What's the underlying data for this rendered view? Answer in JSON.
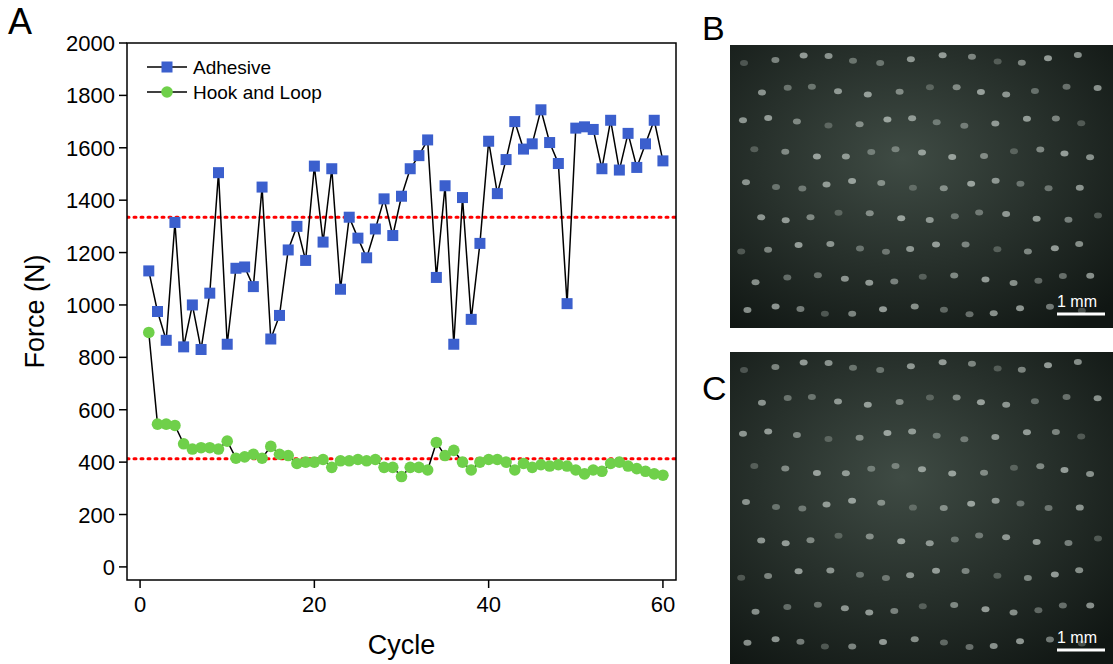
{
  "chart_data": {
    "type": "line",
    "x_label": "Cycle",
    "y_label": "Force (N)",
    "x": [
      1,
      2,
      3,
      4,
      5,
      6,
      7,
      8,
      9,
      10,
      11,
      12,
      13,
      14,
      15,
      16,
      17,
      18,
      19,
      20,
      21,
      22,
      23,
      24,
      25,
      26,
      27,
      28,
      29,
      30,
      31,
      32,
      33,
      34,
      35,
      36,
      37,
      38,
      39,
      40,
      41,
      42,
      43,
      44,
      45,
      46,
      47,
      48,
      49,
      50,
      51,
      52,
      53,
      54,
      55,
      56,
      57,
      58,
      59,
      60
    ],
    "series": [
      {
        "name": "Adhesive",
        "color": "#3b5fcd",
        "marker": "square",
        "line_style": "solid",
        "values": [
          1130,
          975,
          865,
          1315,
          840,
          1000,
          830,
          1045,
          1505,
          850,
          1140,
          1145,
          1070,
          1450,
          870,
          960,
          1210,
          1300,
          1170,
          1530,
          1240,
          1520,
          1060,
          1335,
          1255,
          1180,
          1290,
          1405,
          1265,
          1415,
          1520,
          1570,
          1630,
          1105,
          1455,
          850,
          1410,
          945,
          1235,
          1625,
          1425,
          1555,
          1700,
          1595,
          1615,
          1745,
          1620,
          1540,
          1005,
          1675,
          1680,
          1670,
          1520,
          1705,
          1515,
          1655,
          1525,
          1615,
          1705,
          1550
        ]
      },
      {
        "name": "Hook and Loop",
        "color": "#6fd04a",
        "marker": "circle",
        "line_style": "solid",
        "values": [
          895,
          545,
          545,
          540,
          470,
          450,
          455,
          455,
          450,
          480,
          415,
          420,
          430,
          415,
          460,
          430,
          425,
          395,
          400,
          400,
          410,
          380,
          405,
          405,
          410,
          405,
          410,
          380,
          380,
          345,
          380,
          380,
          370,
          475,
          425,
          445,
          400,
          370,
          400,
          410,
          410,
          400,
          370,
          395,
          380,
          390,
          385,
          390,
          385,
          370,
          355,
          370,
          365,
          395,
          400,
          385,
          375,
          365,
          355,
          350
        ]
      }
    ],
    "reference_lines": [
      {
        "value": 1335,
        "color": "#ff0000",
        "line_style": "dotted"
      },
      {
        "value": 413,
        "color": "#ff0000",
        "line_style": "dotted"
      }
    ],
    "xlim": [
      -1.5,
      61.5
    ],
    "xticks": [
      0,
      20,
      40,
      60
    ],
    "ylim": [
      -50,
      2000
    ],
    "yticks": [
      0,
      200,
      400,
      600,
      800,
      1000,
      1200,
      1400,
      1600,
      1800,
      2000
    ],
    "legend": "upper left",
    "grid": false
  },
  "panels": [
    {
      "label": "A"
    },
    {
      "label": "B",
      "scale_bar": "1 mm"
    },
    {
      "label": "C",
      "scale_bar": "1 mm"
    }
  ]
}
